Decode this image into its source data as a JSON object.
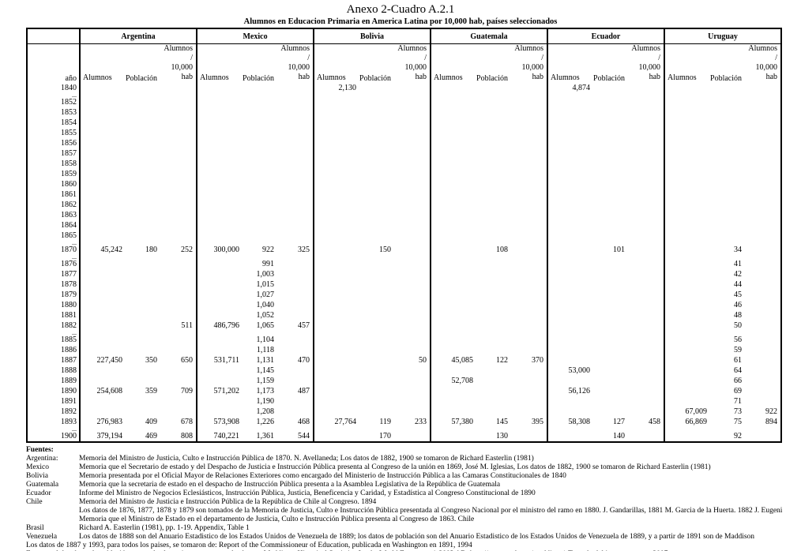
{
  "title": "Anexo 2-Cuadro A.2.1",
  "subtitle": "Alumnos en Educacion Primaria en America Latina por 10,000 hab, países seleccionados",
  "table": {
    "year_header": "año",
    "countries": [
      "Argentina",
      "Mexico",
      "Bolivia",
      "Guatemala",
      "Ecuador",
      "Uruguay"
    ],
    "sub_headers": [
      "Alumnos",
      "Población",
      "Alumnos /\n10,000 hab"
    ],
    "rows": [
      {
        "year": "1840",
        "dots": false,
        "cells": [
          "",
          "",
          "",
          "",
          "",
          "",
          "2,130",
          "",
          "",
          "",
          "",
          "",
          "4,874",
          "",
          "",
          "",
          "",
          ""
        ]
      },
      {
        "year": "...",
        "dots": true,
        "cells": [
          "",
          "",
          "",
          "",
          "",
          "",
          "",
          "",
          "",
          "",
          "",
          "",
          "",
          "",
          "",
          "",
          "",
          ""
        ]
      },
      {
        "year": "1852",
        "dots": false,
        "cells": [
          "",
          "",
          "",
          "",
          "",
          "",
          "",
          "",
          "",
          "",
          "",
          "",
          "",
          "",
          "",
          "",
          "",
          ""
        ]
      },
      {
        "year": "1853",
        "dots": false,
        "cells": [
          "",
          "",
          "",
          "",
          "",
          "",
          "",
          "",
          "",
          "",
          "",
          "",
          "",
          "",
          "",
          "",
          "",
          ""
        ]
      },
      {
        "year": "1854",
        "dots": false,
        "cells": [
          "",
          "",
          "",
          "",
          "",
          "",
          "",
          "",
          "",
          "",
          "",
          "",
          "",
          "",
          "",
          "",
          "",
          ""
        ]
      },
      {
        "year": "1855",
        "dots": false,
        "cells": [
          "",
          "",
          "",
          "",
          "",
          "",
          "",
          "",
          "",
          "",
          "",
          "",
          "",
          "",
          "",
          "",
          "",
          ""
        ]
      },
      {
        "year": "1856",
        "dots": false,
        "cells": [
          "",
          "",
          "",
          "",
          "",
          "",
          "",
          "",
          "",
          "",
          "",
          "",
          "",
          "",
          "",
          "",
          "",
          ""
        ]
      },
      {
        "year": "1857",
        "dots": false,
        "cells": [
          "",
          "",
          "",
          "",
          "",
          "",
          "",
          "",
          "",
          "",
          "",
          "",
          "",
          "",
          "",
          "",
          "",
          ""
        ]
      },
      {
        "year": "1858",
        "dots": false,
        "cells": [
          "",
          "",
          "",
          "",
          "",
          "",
          "",
          "",
          "",
          "",
          "",
          "",
          "",
          "",
          "",
          "",
          "",
          ""
        ]
      },
      {
        "year": "1859",
        "dots": false,
        "cells": [
          "",
          "",
          "",
          "",
          "",
          "",
          "",
          "",
          "",
          "",
          "",
          "",
          "",
          "",
          "",
          "",
          "",
          ""
        ]
      },
      {
        "year": "1860",
        "dots": false,
        "cells": [
          "",
          "",
          "",
          "",
          "",
          "",
          "",
          "",
          "",
          "",
          "",
          "",
          "",
          "",
          "",
          "",
          "",
          ""
        ]
      },
      {
        "year": "1861",
        "dots": false,
        "cells": [
          "",
          "",
          "",
          "",
          "",
          "",
          "",
          "",
          "",
          "",
          "",
          "",
          "",
          "",
          "",
          "",
          "",
          ""
        ]
      },
      {
        "year": "1862",
        "dots": false,
        "cells": [
          "",
          "",
          "",
          "",
          "",
          "",
          "",
          "",
          "",
          "",
          "",
          "",
          "",
          "",
          "",
          "",
          "",
          ""
        ]
      },
      {
        "year": "1863",
        "dots": false,
        "cells": [
          "",
          "",
          "",
          "",
          "",
          "",
          "",
          "",
          "",
          "",
          "",
          "",
          "",
          "",
          "",
          "",
          "",
          ""
        ]
      },
      {
        "year": "1864",
        "dots": false,
        "cells": [
          "",
          "",
          "",
          "",
          "",
          "",
          "",
          "",
          "",
          "",
          "",
          "",
          "",
          "",
          "",
          "",
          "",
          ""
        ]
      },
      {
        "year": "1865",
        "dots": false,
        "cells": [
          "",
          "",
          "",
          "",
          "",
          "",
          "",
          "",
          "",
          "",
          "",
          "",
          "",
          "",
          "",
          "",
          "",
          ""
        ]
      },
      {
        "year": "...",
        "dots": true,
        "cells": [
          "",
          "",
          "",
          "",
          "",
          "",
          "",
          "",
          "",
          "",
          "",
          "",
          "",
          "",
          "",
          "",
          "",
          ""
        ]
      },
      {
        "year": "1870",
        "dots": false,
        "cells": [
          "45,242",
          "180",
          "252",
          "300,000",
          "922",
          "325",
          "",
          "150",
          "",
          "",
          "108",
          "",
          "",
          "101",
          "",
          "",
          "34",
          ""
        ]
      },
      {
        "year": "...",
        "dots": true,
        "cells": [
          "",
          "",
          "",
          "",
          "",
          "",
          "",
          "",
          "",
          "",
          "",
          "",
          "",
          "",
          "",
          "",
          "",
          ""
        ]
      },
      {
        "year": "1876",
        "dots": false,
        "cells": [
          "",
          "",
          "",
          "",
          "991",
          "",
          "",
          "",
          "",
          "",
          "",
          "",
          "",
          "",
          "",
          "",
          "41",
          ""
        ]
      },
      {
        "year": "1877",
        "dots": false,
        "cells": [
          "",
          "",
          "",
          "",
          "1,003",
          "",
          "",
          "",
          "",
          "",
          "",
          "",
          "",
          "",
          "",
          "",
          "42",
          ""
        ]
      },
      {
        "year": "1878",
        "dots": false,
        "cells": [
          "",
          "",
          "",
          "",
          "1,015",
          "",
          "",
          "",
          "",
          "",
          "",
          "",
          "",
          "",
          "",
          "",
          "44",
          ""
        ]
      },
      {
        "year": "1879",
        "dots": false,
        "cells": [
          "",
          "",
          "",
          "",
          "1,027",
          "",
          "",
          "",
          "",
          "",
          "",
          "",
          "",
          "",
          "",
          "",
          "45",
          ""
        ]
      },
      {
        "year": "1880",
        "dots": false,
        "cells": [
          "",
          "",
          "",
          "",
          "1,040",
          "",
          "",
          "",
          "",
          "",
          "",
          "",
          "",
          "",
          "",
          "",
          "46",
          ""
        ]
      },
      {
        "year": "1881",
        "dots": false,
        "cells": [
          "",
          "",
          "",
          "",
          "1,052",
          "",
          "",
          "",
          "",
          "",
          "",
          "",
          "",
          "",
          "",
          "",
          "48",
          ""
        ]
      },
      {
        "year": "1882",
        "dots": false,
        "cells": [
          "",
          "",
          "511",
          "486,796",
          "1,065",
          "457",
          "",
          "",
          "",
          "",
          "",
          "",
          "",
          "",
          "",
          "",
          "50",
          ""
        ]
      },
      {
        "year": "...",
        "dots": true,
        "cells": [
          "",
          "",
          "",
          "",
          "",
          "",
          "",
          "",
          "",
          "",
          "",
          "",
          "",
          "",
          "",
          "",
          "",
          ""
        ]
      },
      {
        "year": "1885",
        "dots": false,
        "cells": [
          "",
          "",
          "",
          "",
          "1,104",
          "",
          "",
          "",
          "",
          "",
          "",
          "",
          "",
          "",
          "",
          "",
          "56",
          ""
        ]
      },
      {
        "year": "1886",
        "dots": false,
        "cells": [
          "",
          "",
          "",
          "",
          "1,118",
          "",
          "",
          "",
          "",
          "",
          "",
          "",
          "",
          "",
          "",
          "",
          "59",
          ""
        ]
      },
      {
        "year": "1887",
        "dots": false,
        "cells": [
          "227,450",
          "350",
          "650",
          "531,711",
          "1,131",
          "470",
          "",
          "",
          "50",
          "45,085",
          "122",
          "370",
          "",
          "",
          "",
          "",
          "61",
          ""
        ]
      },
      {
        "year": "1888",
        "dots": false,
        "cells": [
          "",
          "",
          "",
          "",
          "1,145",
          "",
          "",
          "",
          "",
          "",
          "",
          "",
          "53,000",
          "",
          "",
          "",
          "64",
          ""
        ]
      },
      {
        "year": "1889",
        "dots": false,
        "cells": [
          "",
          "",
          "",
          "",
          "1,159",
          "",
          "",
          "",
          "",
          "52,708",
          "",
          "",
          "",
          "",
          "",
          "",
          "66",
          ""
        ]
      },
      {
        "year": "1890",
        "dots": false,
        "cells": [
          "254,608",
          "359",
          "709",
          "571,202",
          "1,173",
          "487",
          "",
          "",
          "",
          "",
          "",
          "",
          "56,126",
          "",
          "",
          "",
          "69",
          ""
        ]
      },
      {
        "year": "1891",
        "dots": false,
        "cells": [
          "",
          "",
          "",
          "",
          "1,190",
          "",
          "",
          "",
          "",
          "",
          "",
          "",
          "",
          "",
          "",
          "",
          "71",
          ""
        ]
      },
      {
        "year": "1892",
        "dots": false,
        "cells": [
          "",
          "",
          "",
          "",
          "1,208",
          "",
          "",
          "",
          "",
          "",
          "",
          "",
          "",
          "",
          "",
          "67,009",
          "73",
          "922"
        ]
      },
      {
        "year": "1893",
        "dots": false,
        "cells": [
          "276,983",
          "409",
          "678",
          "573,908",
          "1,226",
          "468",
          "27,764",
          "119",
          "233",
          "57,380",
          "145",
          "395",
          "58,308",
          "127",
          "458",
          "66,869",
          "75",
          "894"
        ]
      },
      {
        "year": "...",
        "dots": true,
        "cells": [
          "",
          "",
          "",
          "",
          "",
          "",
          "",
          "",
          "",
          "",
          "",
          "",
          "",
          "",
          "",
          "",
          "",
          ""
        ]
      },
      {
        "year": "1900",
        "dots": false,
        "cells": [
          "379,194",
          "469",
          "808",
          "740,221",
          "1,361",
          "544",
          "",
          "170",
          "",
          "",
          "130",
          "",
          "",
          "140",
          "",
          "",
          "92",
          ""
        ]
      }
    ]
  },
  "fuentes": {
    "heading": "Fuentes:",
    "entries": [
      {
        "label": "Argentina:",
        "text": "Memoria del Ministro de Justicia, Culto e Instrucción Pública de 1870. N. Avellaneda; Los datos de 1882, 1900 se tomaron de Richard Easterlin (1981)"
      },
      {
        "label": "Mexico",
        "text": "Memoria que el Secretario de estado y del Despacho de Justicia e Instrucción Pública presenta al Congreso de la unión en 1869, José M. Iglesias, Los datos de 1882, 1900 se tomaron de Richard Easterlin (1981)"
      },
      {
        "label": "Bolivia",
        "text": "Memoria presentada por el Oficial Mayor de Relaciones Exteriores como encargado del Ministerio de Instrucción Pública a las Camaras Constitucionales de 1840"
      },
      {
        "label": "Guatemala",
        "text": "Memoria que la secretaria de estado en el despacho de Instrucción Pública presenta a la Asamblea Legislativa de la República de Guatemala"
      },
      {
        "label": "Ecuador",
        "text": "Informe del Ministro de Negocios Eclesiásticos, Instrucción Pública, Justicia, Beneficencia y Caridad, y Estadística al Congreso Constitucional de 1890"
      },
      {
        "label": "Chile",
        "text": "Memoria del Ministro de Justicia e Instrucción Pública de la República de Chile al Congreso. 1894"
      },
      {
        "label": "",
        "text": "Los datos de 1876, 1877, 1878 y 1879 son tomados de la Memoria de Justicia, Culto e Instrucción Pública presentada al Congreso Nacional por el ministro del ramo en 1880. J. Gandarillas, 1881 M. Garcia de la Huerta. 1882 J. Eugeni"
      },
      {
        "label": "",
        "text": "Memoria que el Ministro de Estado en el departamento de Justicia, Culto e Instrucción Pública presenta al Congreso de 1863. Chile"
      },
      {
        "label": "Brasil",
        "text": "Richard A. Easterlin (1981), pp. 1-19. Appendix, Table 1"
      },
      {
        "label": "Venezuela",
        "text": "Los datos de 1888 son del Anuario Estadistico de los Estados Unidos de Venezuela de 1889; los datos de población son del Anuario Estadistico de los Estados Unidos de Venezuela de 1889, y a partir de 1891 son de Maddison"
      }
    ],
    "notes": [
      "Los datos de 1887 y 1993, para todos los paises, se tomaron de: Report of the Commissioneur of Education, publicada en Washington en 1891, 1994",
      "En general, los datos de población para todos los paises se tomaron de: Angus, Maddison, Historical Statistics for the World Economy:  1-2003 AD, http://www.ggdc.net/maddison/, Tomado del internet, marzo 2007"
    ]
  }
}
